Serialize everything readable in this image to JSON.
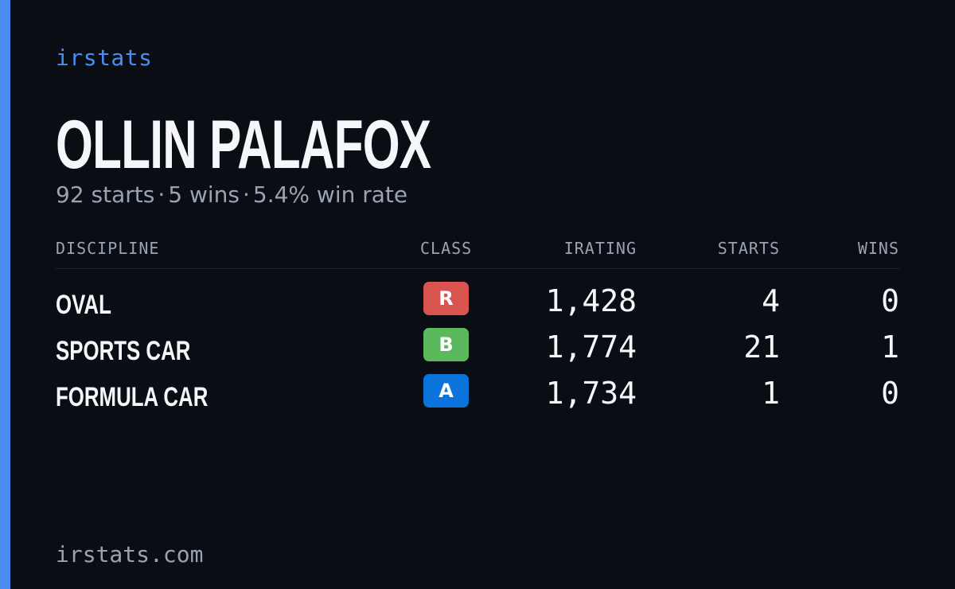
{
  "brand": "irstats",
  "driver": {
    "name": "OLLIN PALAFOX",
    "starts_text": "92 starts",
    "wins_text": "5 wins",
    "win_rate_text": "5.4% win rate",
    "separator": "·"
  },
  "table": {
    "headers": {
      "discipline": "DISCIPLINE",
      "class": "CLASS",
      "irating": "IRATING",
      "starts": "STARTS",
      "wins": "WINS"
    },
    "rows": [
      {
        "discipline": "OVAL",
        "class": "R",
        "class_color": "#d9534f",
        "irating": "1,428",
        "starts": "4",
        "wins": "0"
      },
      {
        "discipline": "SPORTS CAR",
        "class": "B",
        "class_color": "#5cb85c",
        "irating": "1,774",
        "starts": "21",
        "wins": "1"
      },
      {
        "discipline": "FORMULA CAR",
        "class": "A",
        "class_color": "#0a74da",
        "irating": "1,734",
        "starts": "1",
        "wins": "0"
      }
    ]
  },
  "footer": "irstats.com",
  "colors": {
    "accent": "#4a8df0",
    "background": "#0a0d14",
    "text_primary": "#f4f6fa",
    "text_muted": "#9aa3b2"
  }
}
